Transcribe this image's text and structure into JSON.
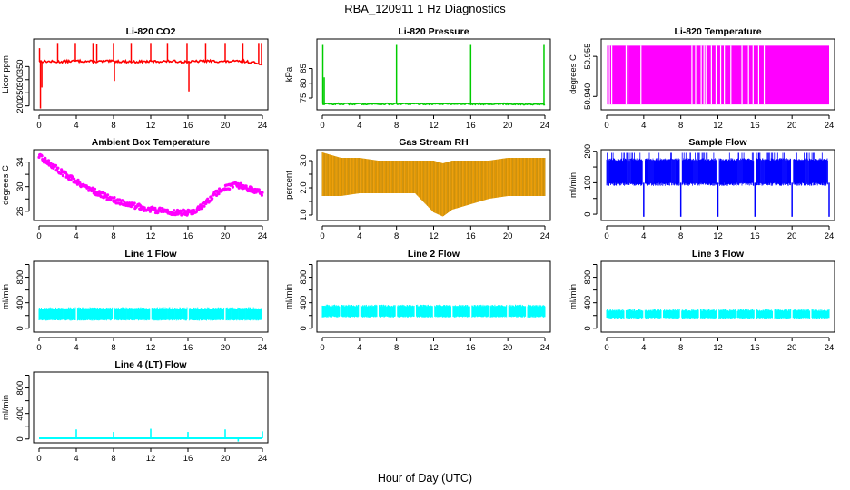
{
  "page": {
    "title": "RBA_120911  1 Hz Diagnostics",
    "xlabel": "Hour of Day (UTC)"
  },
  "chart_data": [
    {
      "id": "co2",
      "type": "line",
      "title": "Li-820 CO2",
      "ylabel": "Licor ppm",
      "color": "#ff0000",
      "xlim": [
        0,
        24
      ],
      "ylim": [
        185,
        455
      ],
      "yticks": [
        200,
        250,
        300,
        350
      ],
      "xticks": [
        0,
        4,
        8,
        12,
        16,
        20,
        24
      ],
      "x": [
        0,
        2,
        4,
        6,
        8,
        10,
        12,
        14,
        16,
        18,
        20,
        22,
        24
      ],
      "y": [
        370,
        368,
        371,
        369,
        370,
        368,
        369,
        370,
        368,
        371,
        369,
        370,
        360
      ],
      "band": [
        362,
        376
      ],
      "spikes": [
        {
          "x": 0.05,
          "y": 420
        },
        {
          "x": 0.15,
          "y": 190
        },
        {
          "x": 0.3,
          "y": 270
        },
        {
          "x": 2.0,
          "y": 440
        },
        {
          "x": 3.9,
          "y": 440
        },
        {
          "x": 5.8,
          "y": 440
        },
        {
          "x": 6.2,
          "y": 435
        },
        {
          "x": 8.0,
          "y": 440
        },
        {
          "x": 8.1,
          "y": 295
        },
        {
          "x": 9.9,
          "y": 440
        },
        {
          "x": 12.0,
          "y": 440
        },
        {
          "x": 13.8,
          "y": 440
        },
        {
          "x": 15.9,
          "y": 440
        },
        {
          "x": 16.1,
          "y": 255
        },
        {
          "x": 17.9,
          "y": 440
        },
        {
          "x": 20.0,
          "y": 440
        },
        {
          "x": 21.9,
          "y": 440
        },
        {
          "x": 23.6,
          "y": 440
        },
        {
          "x": 23.9,
          "y": 440
        }
      ]
    },
    {
      "id": "pressure",
      "type": "line",
      "title": "Li-820 Pressure",
      "ylabel": "kPa",
      "color": "#00cc00",
      "xlim": [
        0,
        24
      ],
      "ylim": [
        71,
        95
      ],
      "yticks": [
        75,
        80,
        85
      ],
      "xticks": [
        0,
        4,
        8,
        12,
        16,
        20,
        24
      ],
      "x": [
        0,
        4,
        8,
        12,
        16,
        20,
        24
      ],
      "y": [
        73.0,
        73.0,
        73.0,
        73.0,
        73.0,
        73.0,
        72.8
      ],
      "band": [
        72.7,
        73.5
      ],
      "spikes": [
        {
          "x": 0.05,
          "y": 93
        },
        {
          "x": 0.2,
          "y": 82
        },
        {
          "x": 8.0,
          "y": 93
        },
        {
          "x": 16.0,
          "y": 93
        },
        {
          "x": 23.9,
          "y": 93
        }
      ]
    },
    {
      "id": "temperature",
      "type": "bar",
      "title": "Li-820 Temperature",
      "ylabel": "degrees C",
      "color": "#ff00ff",
      "xlim": [
        0,
        24
      ],
      "ylim": [
        50.935,
        50.9615
      ],
      "yticks": [
        50.94,
        50.955
      ],
      "ytick_labels": [
        "50.940",
        "50.955"
      ],
      "xticks": [
        0,
        4,
        8,
        12,
        16,
        20,
        24
      ],
      "bar_top": 50.959,
      "bar_bottom": 50.937,
      "gaps": [
        0.3,
        0.55,
        2.1,
        2.3,
        3.7,
        9.2,
        9.6,
        10.2,
        10.5,
        10.7,
        11.3,
        11.8,
        12.3,
        12.7,
        13.4,
        14.6,
        15.3,
        15.8,
        16.4,
        17.0
      ]
    },
    {
      "id": "ambient",
      "type": "scatter",
      "title": "Ambient Box Temperature",
      "ylabel": "degrees C",
      "color": "#ff00ff",
      "xlim": [
        0,
        24
      ],
      "ylim": [
        24.5,
        36
      ],
      "yticks": [
        26,
        28,
        30,
        32,
        34
      ],
      "ytick_labels": [
        "26",
        "",
        "30",
        "",
        "34"
      ],
      "xticks": [
        0,
        4,
        8,
        12,
        16,
        20,
        24
      ],
      "x": [
        0,
        1,
        2,
        3,
        4,
        5,
        6,
        7,
        8,
        9,
        10,
        11,
        12,
        13,
        14,
        15,
        16,
        17,
        18,
        19,
        20,
        21,
        22,
        23,
        24
      ],
      "y": [
        34.9,
        33.9,
        32.8,
        31.8,
        30.9,
        30.0,
        29.2,
        28.5,
        27.9,
        27.4,
        27.0,
        26.6,
        26.3,
        26.1,
        25.9,
        25.8,
        25.8,
        26.2,
        27.4,
        28.9,
        29.8,
        30.2,
        30.0,
        29.4,
        28.9
      ],
      "spread": 0.45
    },
    {
      "id": "rh",
      "type": "scatter",
      "title": "Gas Stream RH",
      "ylabel": "percent",
      "color": "#ffa500",
      "color2": "#b8860b",
      "xlim": [
        0,
        24
      ],
      "ylim": [
        0.8,
        3.4
      ],
      "yticks": [
        1.0,
        1.5,
        2.0,
        2.5,
        3.0
      ],
      "ytick_labels": [
        "1.0",
        "",
        "2.0",
        "",
        "3.0"
      ],
      "xticks": [
        0,
        4,
        8,
        12,
        16,
        20,
        24
      ],
      "x": [
        0,
        2,
        4,
        6,
        8,
        10,
        12,
        13,
        14,
        16,
        18,
        20,
        22,
        24
      ],
      "upper": [
        3.3,
        3.1,
        3.1,
        3.0,
        3.0,
        3.0,
        3.0,
        2.9,
        3.0,
        3.0,
        3.0,
        3.1,
        3.1,
        3.1
      ],
      "lower": [
        1.7,
        1.7,
        1.8,
        1.8,
        1.8,
        1.8,
        1.1,
        0.95,
        1.2,
        1.4,
        1.6,
        1.7,
        1.7,
        1.7
      ]
    },
    {
      "id": "sample_flow",
      "type": "line",
      "title": "Sample Flow",
      "ylabel": "ml/min",
      "color": "#0000ff",
      "xlim": [
        0,
        24
      ],
      "ylim": [
        -20,
        205
      ],
      "yticks": [
        0,
        50,
        100,
        150,
        200
      ],
      "ytick_labels": [
        "0",
        "",
        "100",
        "",
        "200"
      ],
      "xticks": [
        0,
        4,
        8,
        12,
        16,
        20,
        24
      ],
      "band": [
        100,
        170
      ],
      "dips": [
        4.0,
        8.0,
        12.0,
        16.0,
        20.0,
        24.0
      ],
      "dip_value": -8
    },
    {
      "id": "line1",
      "type": "area",
      "title": "Line 1 Flow",
      "ylabel": "ml/min",
      "color": "#00ffff",
      "xlim": [
        0,
        24
      ],
      "ylim": [
        -60,
        1050
      ],
      "yticks": [
        0,
        200,
        400,
        600,
        800,
        1000
      ],
      "ytick_labels": [
        "0",
        "",
        "400",
        "",
        "800",
        ""
      ],
      "xticks": [
        0,
        4,
        8,
        12,
        16,
        20,
        24
      ],
      "band": [
        120,
        330
      ],
      "gaps": [
        4.0,
        8.0,
        12.0,
        16.0,
        20.0,
        24.0
      ]
    },
    {
      "id": "line2",
      "type": "area",
      "title": "Line 2 Flow",
      "ylabel": "ml/min",
      "color": "#00ffff",
      "xlim": [
        0,
        24
      ],
      "ylim": [
        -60,
        1050
      ],
      "yticks": [
        0,
        200,
        400,
        600,
        800,
        1000
      ],
      "ytick_labels": [
        "0",
        "",
        "400",
        "",
        "800",
        ""
      ],
      "xticks": [
        0,
        4,
        8,
        12,
        16,
        20,
        24
      ],
      "band": [
        170,
        370
      ],
      "gaps": [
        2.0,
        4.0,
        6.0,
        8.0,
        10.0,
        12.0,
        14.0,
        16.0,
        18.0,
        20.0,
        22.0
      ]
    },
    {
      "id": "line3",
      "type": "area",
      "title": "Line 3 Flow",
      "ylabel": "ml/min",
      "color": "#00ffff",
      "xlim": [
        0,
        24
      ],
      "ylim": [
        -60,
        1050
      ],
      "yticks": [
        0,
        200,
        400,
        600,
        800,
        1000
      ],
      "ytick_labels": [
        "0",
        "",
        "400",
        "",
        "800",
        ""
      ],
      "xticks": [
        0,
        4,
        8,
        12,
        16,
        20,
        24
      ],
      "band": [
        150,
        300
      ],
      "gaps": [
        2.0,
        4.0,
        6.0,
        8.0,
        10.0,
        12.0,
        14.0,
        16.0,
        18.0,
        20.0,
        22.0
      ]
    },
    {
      "id": "line4",
      "type": "line",
      "title": "Line 4 (LT) Flow",
      "ylabel": "ml/min",
      "color": "#00ffff",
      "xlim": [
        0,
        24
      ],
      "ylim": [
        -60,
        1050
      ],
      "yticks": [
        0,
        200,
        400,
        600,
        800,
        1000
      ],
      "ytick_labels": [
        "0",
        "",
        "400",
        "",
        "800",
        ""
      ],
      "xticks": [
        0,
        4,
        8,
        12,
        16,
        20,
        24
      ],
      "x": [
        0,
        24
      ],
      "y": [
        12,
        12
      ],
      "spikes": [
        {
          "x": 4.0,
          "y": 150
        },
        {
          "x": 8.0,
          "y": 110
        },
        {
          "x": 12.0,
          "y": 160
        },
        {
          "x": 16.0,
          "y": 110
        },
        {
          "x": 20.0,
          "y": 150
        },
        {
          "x": 21.4,
          "y": -40
        },
        {
          "x": 24.0,
          "y": 120
        }
      ]
    }
  ]
}
